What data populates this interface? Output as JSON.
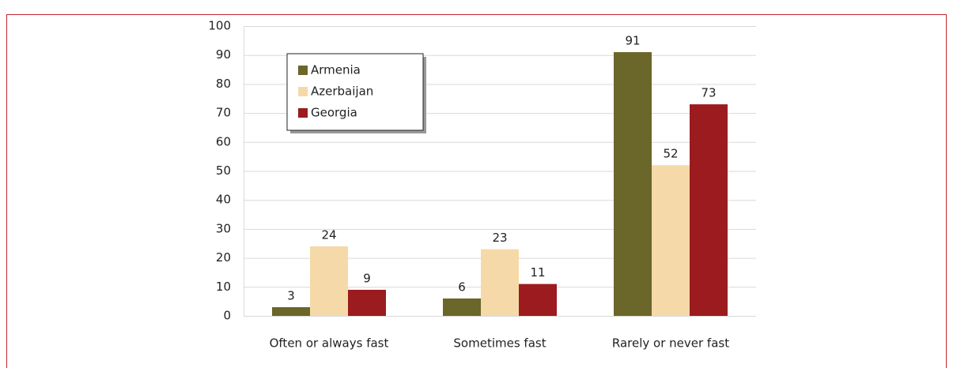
{
  "chart_data": {
    "type": "bar",
    "categories": [
      "Often or always fast",
      "Sometimes fast",
      "Rarely or never fast"
    ],
    "series": [
      {
        "name": "Armenia",
        "color": "#6b6629",
        "values": [
          3,
          6,
          91
        ]
      },
      {
        "name": "Azerbaijan",
        "color": "#f6d9a8",
        "values": [
          24,
          23,
          52
        ]
      },
      {
        "name": "Georgia",
        "color": "#9b1b1f",
        "values": [
          9,
          11,
          73
        ]
      }
    ],
    "ylim": [
      0,
      100
    ],
    "yticks": [
      0,
      10,
      20,
      30,
      40,
      50,
      60,
      70,
      80,
      90,
      100
    ],
    "grid": true,
    "legend": "top-left"
  }
}
